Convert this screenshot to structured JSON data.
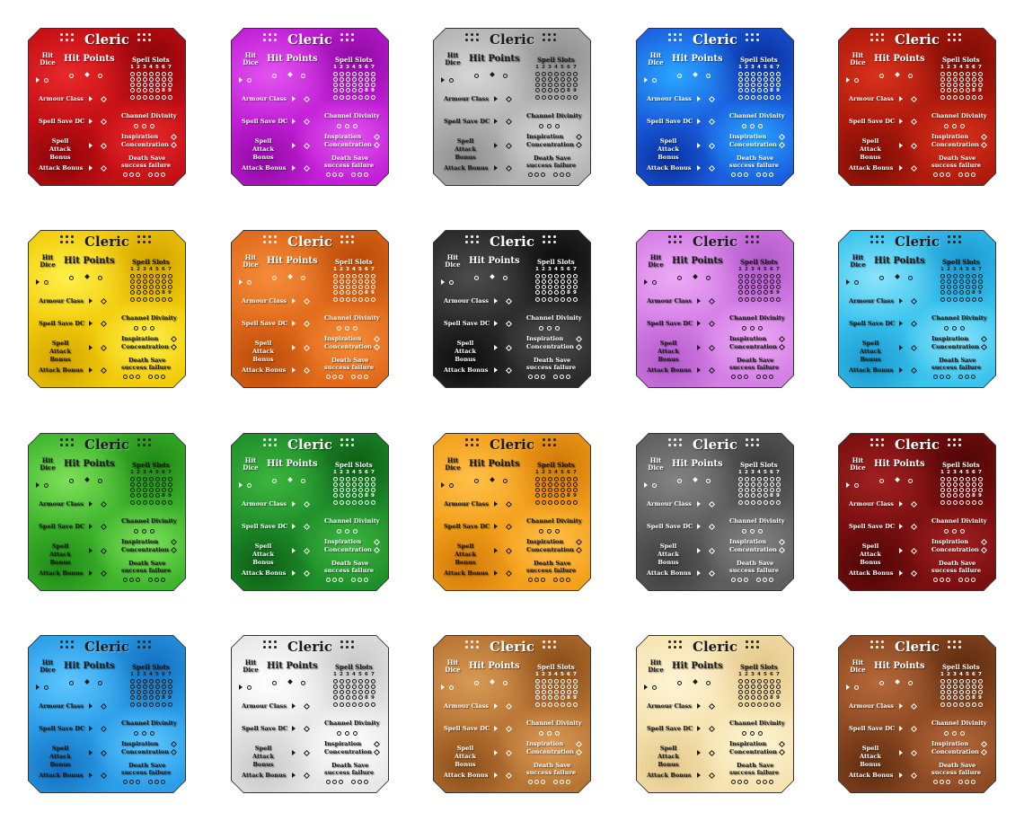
{
  "sheet": {
    "card_text": {
      "title": "Cleric",
      "hit_dice": "Hit Dice",
      "hit_points": "Hit Points",
      "spell_slots": "Spell Slots",
      "slot_levels_row1": [
        "1",
        "2",
        "3",
        "4",
        "5",
        "6",
        "7"
      ],
      "slot_levels_row2": [
        "8",
        "9"
      ],
      "armour_class": "Armour Class",
      "spell_save_dc": "Spell Save DC",
      "spell_attack_bonus": "Spell Attack Bonus",
      "attack_bonus": "Attack Bonus",
      "channel_divinity": "Channel Divinity",
      "inspiration": "Inspiration",
      "concentration": "Concentration",
      "death_save": "Death Save",
      "success_failure": "success  failure"
    },
    "cards": [
      {
        "color": "red",
        "base": "#c40f14",
        "light": "#e8292b",
        "dark": "#8c0509",
        "text": "#ffffff"
      },
      {
        "color": "magenta",
        "base": "#c21fd6",
        "light": "#e254f0",
        "dark": "#8f0aa3",
        "text": "#ffffff"
      },
      {
        "color": "silver",
        "base": "#b4b4b4",
        "light": "#d6d6d6",
        "dark": "#8e8e8e",
        "text": "#1a1a1a"
      },
      {
        "color": "blue",
        "base": "#1a5fe0",
        "light": "#2aa6ff",
        "dark": "#0a2f9e",
        "text": "#ffffff"
      },
      {
        "color": "crimson",
        "base": "#b01a0b",
        "light": "#d6321c",
        "dark": "#7a0d05",
        "text": "#ffffff"
      },
      {
        "color": "yellow",
        "base": "#f2cc0a",
        "light": "#fff04a",
        "dark": "#d4a300",
        "text": "#1a1a1a"
      },
      {
        "color": "orange",
        "base": "#e06a1a",
        "light": "#f58c3a",
        "dark": "#b84a08",
        "text": "#ffffff"
      },
      {
        "color": "black",
        "base": "#2a2a2a",
        "light": "#4c4c4c",
        "dark": "#0c0c0c",
        "text": "#ffffff"
      },
      {
        "color": "lilac",
        "base": "#d47ee6",
        "light": "#ecaaf5",
        "dark": "#b25acb",
        "text": "#1a1a1a"
      },
      {
        "color": "sky",
        "base": "#39c3ee",
        "light": "#8be4fb",
        "dark": "#1a98d0",
        "text": "#1a1a1a"
      },
      {
        "color": "lime",
        "base": "#3eb52c",
        "light": "#7ee05a",
        "dark": "#1f8a16",
        "text": "#1a1a1a"
      },
      {
        "color": "green",
        "base": "#1f8f2a",
        "light": "#3cb53e",
        "dark": "#0d5e16",
        "text": "#ffffff"
      },
      {
        "color": "amber",
        "base": "#f4a01a",
        "light": "#ffc04a",
        "dark": "#d07a08",
        "text": "#1a1a1a"
      },
      {
        "color": "grey",
        "base": "#5e5e5e",
        "light": "#838383",
        "dark": "#3c3c3c",
        "text": "#ffffff"
      },
      {
        "color": "maroon",
        "base": "#7a0f0f",
        "light": "#a02020",
        "dark": "#4e0606",
        "text": "#ffffff"
      },
      {
        "color": "azure",
        "base": "#2a9ee8",
        "light": "#5ec6ff",
        "dark": "#1470c0",
        "text": "#1a1a1a"
      },
      {
        "color": "white",
        "base": "#e8e8e8",
        "light": "#ffffff",
        "dark": "#c8c8c8",
        "text": "#1a1a1a"
      },
      {
        "color": "bronze",
        "base": "#b87432",
        "light": "#d89a56",
        "dark": "#8a4e1a",
        "text": "#ffffff"
      },
      {
        "color": "cream",
        "base": "#f6e3b0",
        "light": "#fff4d4",
        "dark": "#e4c88a",
        "text": "#1a1a1a"
      },
      {
        "color": "brown",
        "base": "#8e4a22",
        "light": "#b4683a",
        "dark": "#5e2c10",
        "text": "#ffffff"
      }
    ]
  }
}
